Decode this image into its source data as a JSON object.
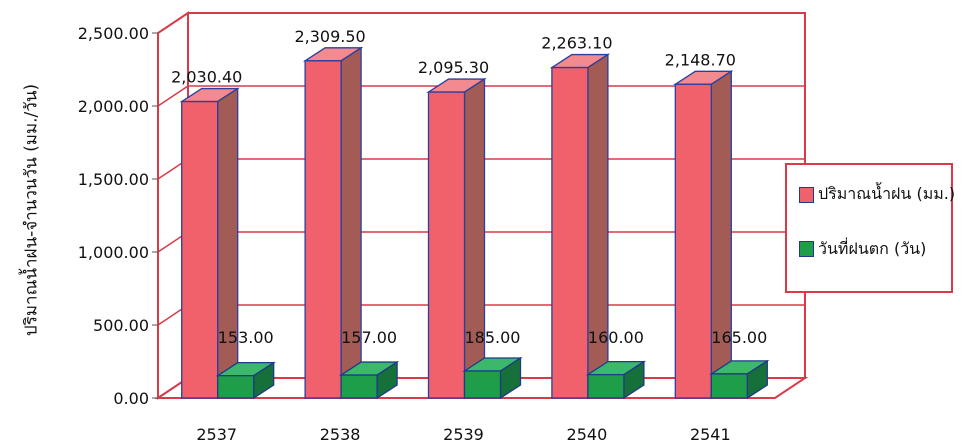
{
  "chart_data": {
    "type": "bar",
    "title": "",
    "xlabel": "",
    "ylabel": "ปริมาณน้ำฝน-จำนวนวัน (มม./วัน)",
    "categories": [
      "2537",
      "2538",
      "2539",
      "2540",
      "2541"
    ],
    "series": [
      {
        "name": "ปริมาณน้ำฝน (มม.)",
        "values": [
          2030.4,
          2309.5,
          2095.3,
          2263.1,
          2148.7
        ],
        "labels": [
          "2,030.40",
          "2,309.50",
          "2,095.30",
          "2,263.10",
          "2,148.70"
        ],
        "color": "#f0616c"
      },
      {
        "name": "วันที่ฝนตก (วัน)",
        "values": [
          153.0,
          157.0,
          185.0,
          160.0,
          165.0
        ],
        "labels": [
          "153.00",
          "157.00",
          "185.00",
          "160.00",
          "165.00"
        ],
        "color": "#1f9e4a"
      }
    ],
    "ylim": [
      0,
      2500
    ],
    "yticks": [
      "0.00",
      "500.00",
      "1,000.00",
      "1,500.00",
      "2,000.00",
      "2,500.00"
    ],
    "grid": true,
    "legend": "right",
    "style": "3d"
  }
}
